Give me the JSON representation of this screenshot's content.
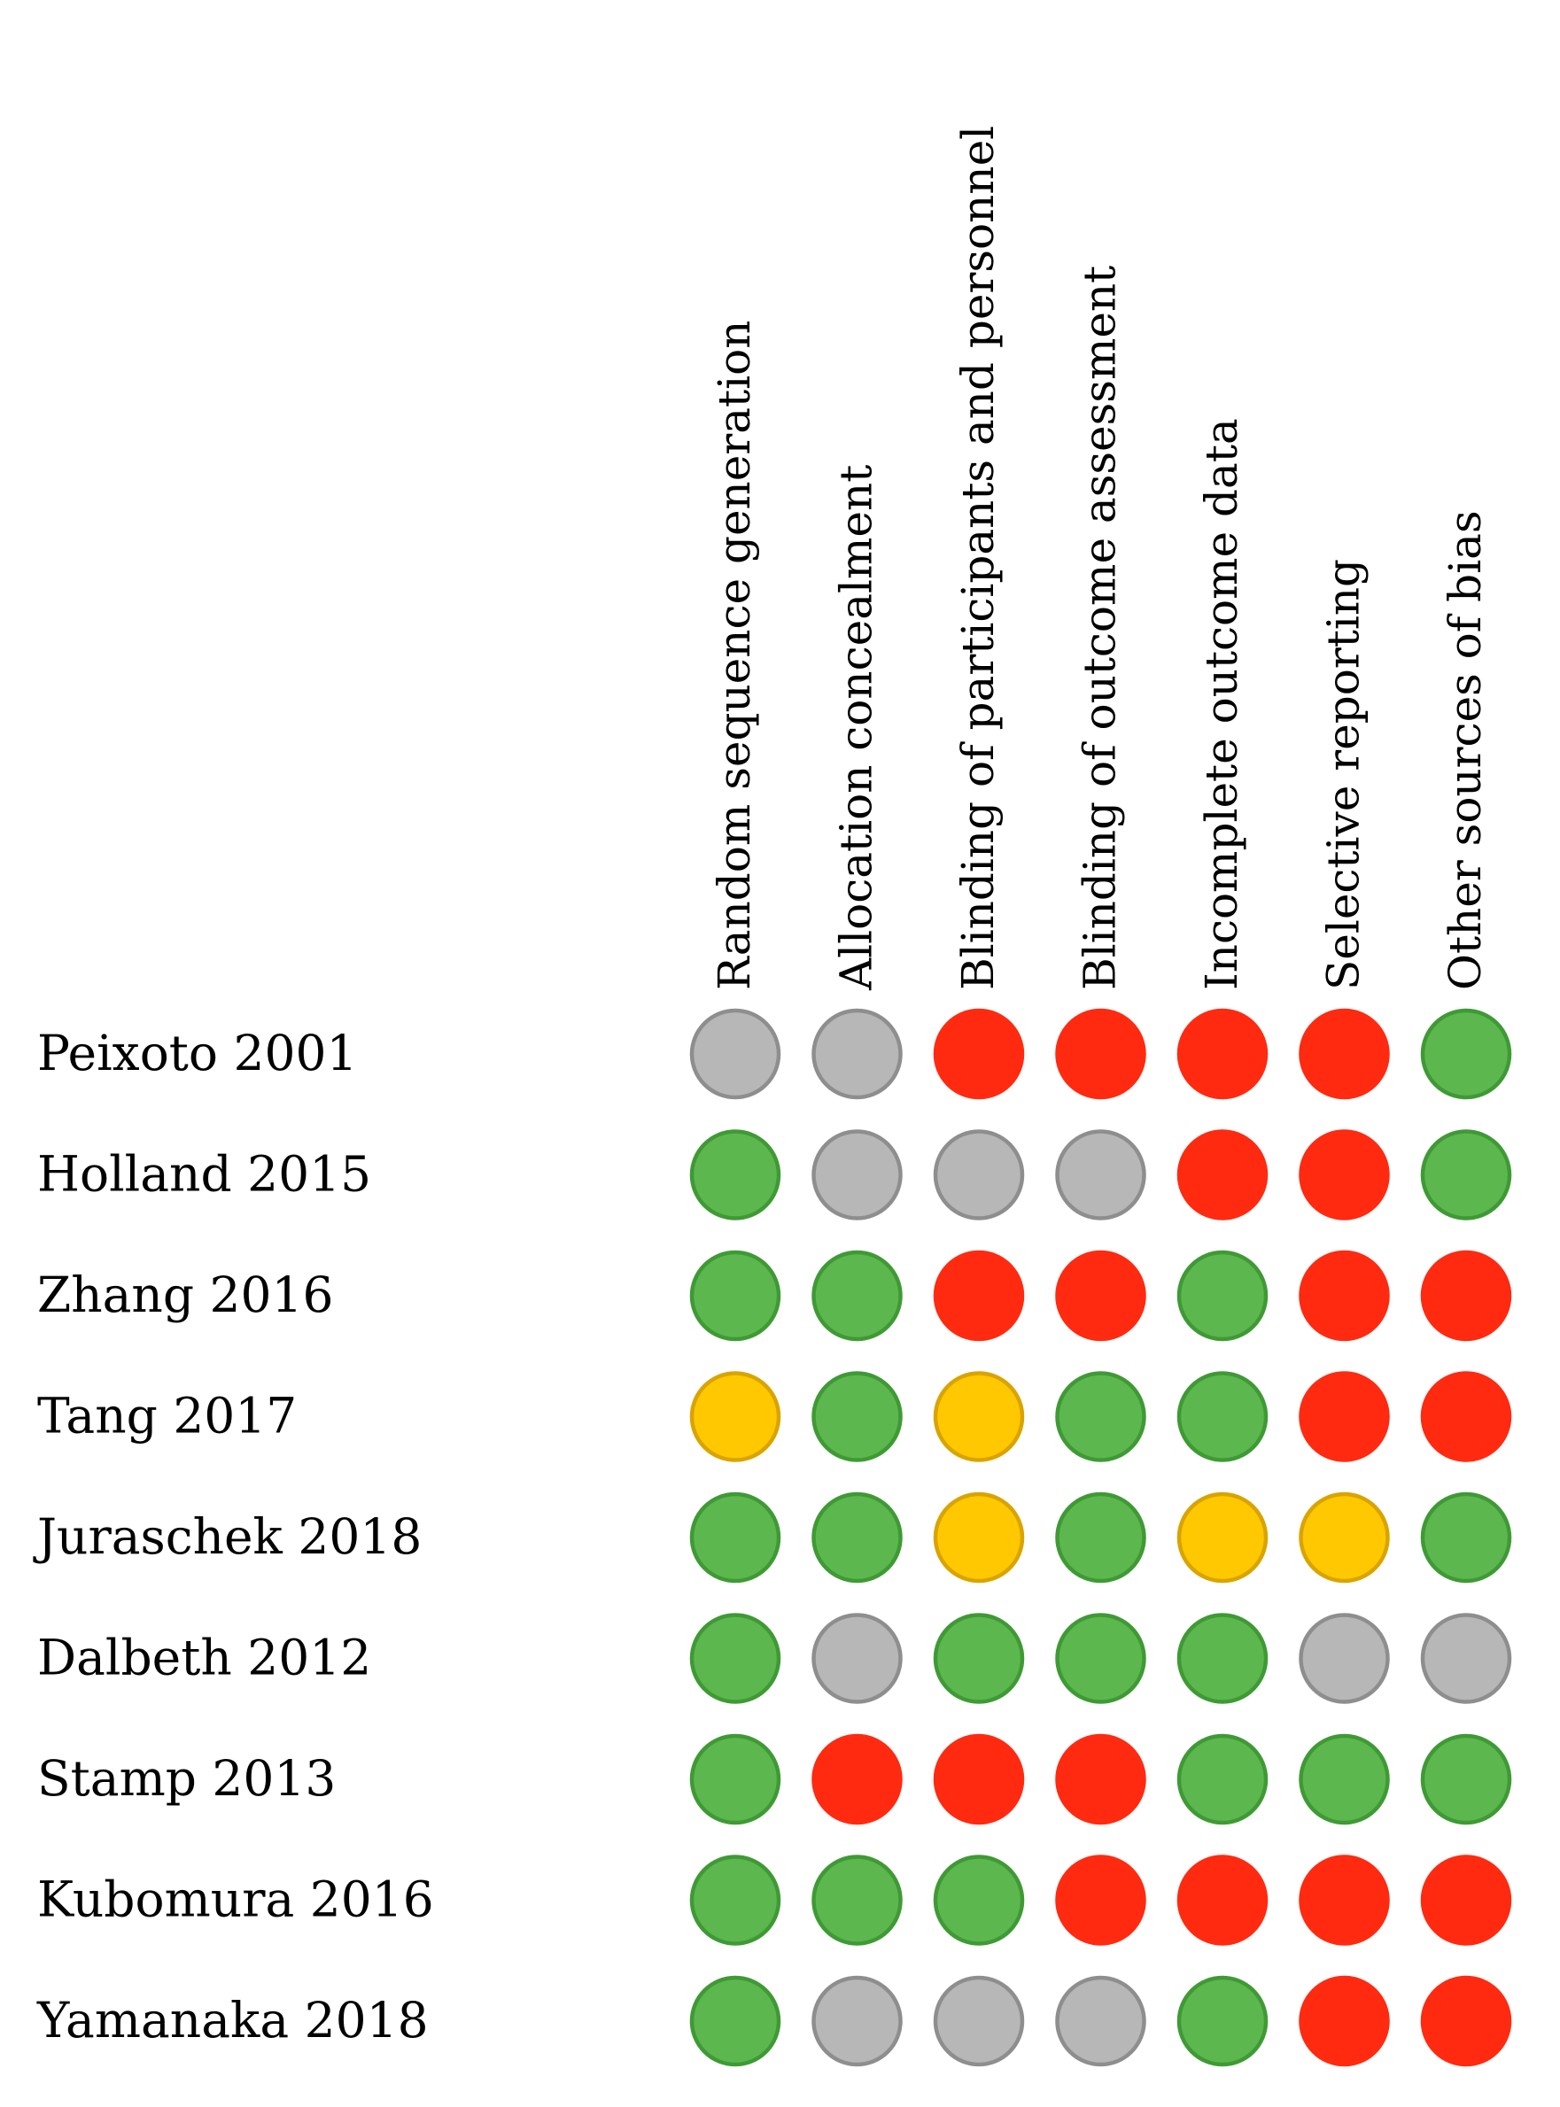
{
  "chart_data": {
    "type": "table",
    "columns": [
      "Random sequence generation",
      "Allocation concealment",
      "Blinding of participants and personnel",
      "Blinding of outcome assessment",
      "Incomplete outcome data",
      "Selective reporting",
      "Other sources of bias"
    ],
    "rows": [
      {
        "study": "Peixoto 2001",
        "ratings": [
          "unclear",
          "unclear",
          "high",
          "high",
          "high",
          "high",
          "low"
        ]
      },
      {
        "study": "Holland 2015",
        "ratings": [
          "low",
          "unclear",
          "unclear",
          "unclear",
          "high",
          "high",
          "low"
        ]
      },
      {
        "study": "Zhang 2016",
        "ratings": [
          "low",
          "low",
          "high",
          "high",
          "low",
          "high",
          "high"
        ]
      },
      {
        "study": "Tang 2017",
        "ratings": [
          "some",
          "low",
          "some",
          "low",
          "low",
          "high",
          "high"
        ]
      },
      {
        "study": "Juraschek 2018",
        "ratings": [
          "low",
          "low",
          "some",
          "low",
          "some",
          "some",
          "low"
        ]
      },
      {
        "study": "Dalbeth 2012",
        "ratings": [
          "low",
          "unclear",
          "low",
          "low",
          "low",
          "unclear",
          "unclear"
        ]
      },
      {
        "study": "Stamp 2013",
        "ratings": [
          "low",
          "high",
          "high",
          "high",
          "low",
          "low",
          "low"
        ]
      },
      {
        "study": "Kubomura 2016",
        "ratings": [
          "low",
          "low",
          "low",
          "high",
          "high",
          "high",
          "high"
        ]
      },
      {
        "study": "Yamanaka 2018",
        "ratings": [
          "low",
          "unclear",
          "unclear",
          "unclear",
          "low",
          "high",
          "high"
        ]
      }
    ],
    "rating_colors": {
      "low": {
        "fill": "#5cb84e",
        "stroke": "#3f9a35"
      },
      "unclear": {
        "fill": "#b7b7b7",
        "stroke": "#8e8e8e"
      },
      "high": {
        "fill": "#ff2a10",
        "stroke": "#ff2a10"
      },
      "some": {
        "fill": "#ffc800",
        "stroke": "#d9a400"
      }
    }
  }
}
